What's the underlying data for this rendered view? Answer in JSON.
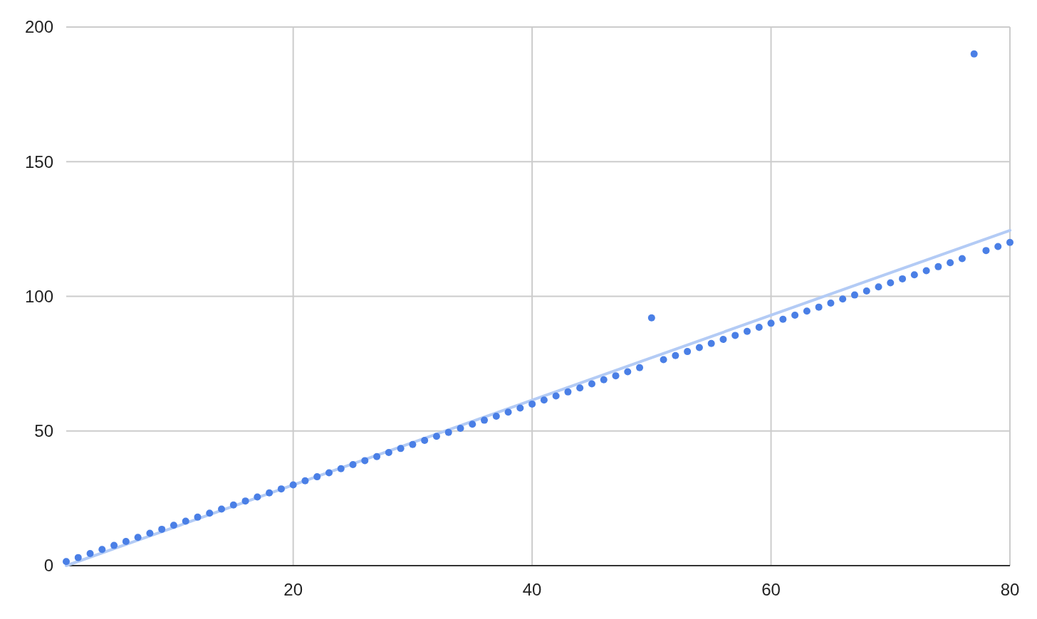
{
  "chart_data": {
    "type": "scatter",
    "x": [
      1,
      2,
      3,
      4,
      5,
      6,
      7,
      8,
      9,
      10,
      11,
      12,
      13,
      14,
      15,
      16,
      17,
      18,
      19,
      20,
      21,
      22,
      23,
      24,
      25,
      26,
      27,
      28,
      29,
      30,
      31,
      32,
      33,
      34,
      35,
      36,
      37,
      38,
      39,
      40,
      41,
      42,
      43,
      44,
      45,
      46,
      47,
      48,
      49,
      50,
      51,
      52,
      53,
      54,
      55,
      56,
      57,
      58,
      59,
      60,
      61,
      62,
      63,
      64,
      65,
      66,
      67,
      68,
      69,
      70,
      71,
      72,
      73,
      74,
      75,
      76,
      77,
      78,
      79,
      80
    ],
    "series": [
      {
        "type": "line",
        "marker": "none",
        "color": "#b3cbf5",
        "x": [
          1,
          80
        ],
        "values": [
          0,
          124.5
        ]
      },
      {
        "color": "#4a7fe6",
        "values": [
          1.5,
          3,
          4.5,
          6,
          7.5,
          9,
          10.5,
          12,
          13.5,
          15,
          16.5,
          18,
          19.5,
          21,
          22.5,
          24,
          25.5,
          27,
          28.5,
          30,
          31.5,
          33,
          34.5,
          36,
          37.5,
          39,
          40.5,
          42,
          43.5,
          45,
          46.5,
          48,
          49.5,
          51,
          52.5,
          54,
          55.5,
          57,
          58.5,
          60,
          61.5,
          63,
          64.5,
          66,
          67.5,
          69,
          70.5,
          72,
          73.5,
          92,
          76.5,
          78,
          79.5,
          81,
          82.5,
          84,
          85.5,
          87,
          88.5,
          90,
          91.5,
          93,
          94.5,
          96,
          97.5,
          99,
          100.5,
          102,
          103.5,
          105,
          106.5,
          108,
          109.5,
          111,
          112.5,
          114,
          190,
          117,
          118.5,
          120
        ]
      }
    ],
    "xlim": [
      1,
      80
    ],
    "xticks": [
      20,
      40,
      60,
      80
    ],
    "ylim": [
      0,
      200
    ],
    "yticks": [
      0,
      50,
      100,
      150,
      200
    ],
    "grid": true,
    "marker": "circle"
  }
}
